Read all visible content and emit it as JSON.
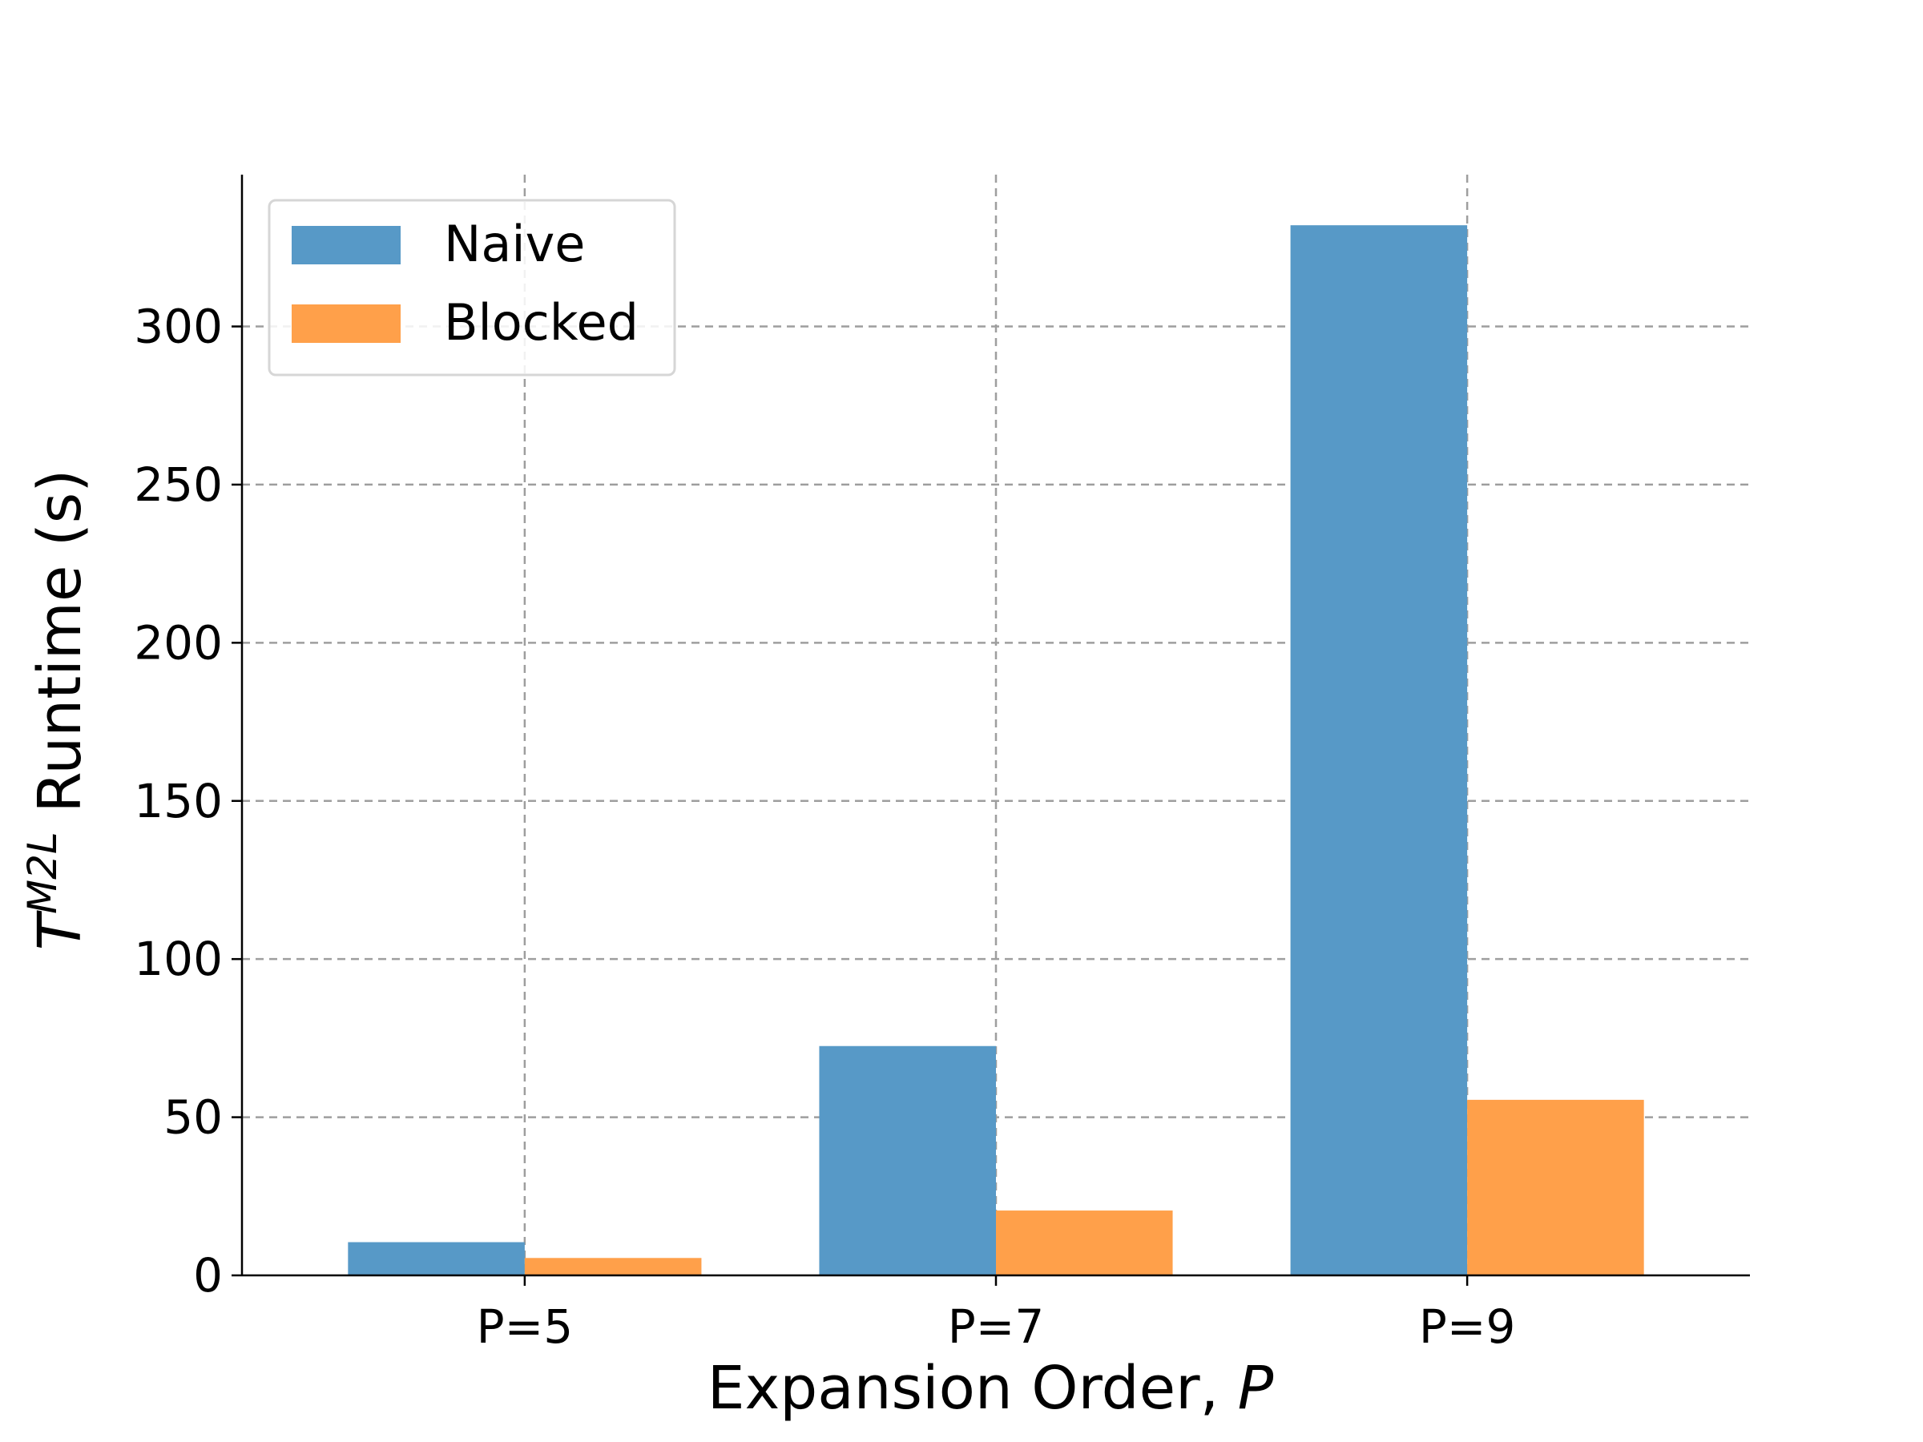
{
  "chart_data": {
    "type": "bar",
    "categories": [
      "P=5",
      "P=7",
      "P=9"
    ],
    "series": [
      {
        "name": "Naive",
        "values": [
          10.5,
          72.5,
          332
        ],
        "color": "#5799c7"
      },
      {
        "name": "Blocked",
        "values": [
          5.5,
          20.5,
          55.5
        ],
        "color": "#ffa04a"
      }
    ],
    "xlabel": {
      "text": "Expansion Order, ",
      "italic": "P"
    },
    "ylabel": {
      "base": "T",
      "sup": "M2L",
      "rest": " Runtime (s)"
    },
    "ylim": [
      0,
      348
    ],
    "yticks": [
      0,
      50,
      100,
      150,
      200,
      250,
      300
    ],
    "grid": true,
    "legend_position": "top-left"
  }
}
